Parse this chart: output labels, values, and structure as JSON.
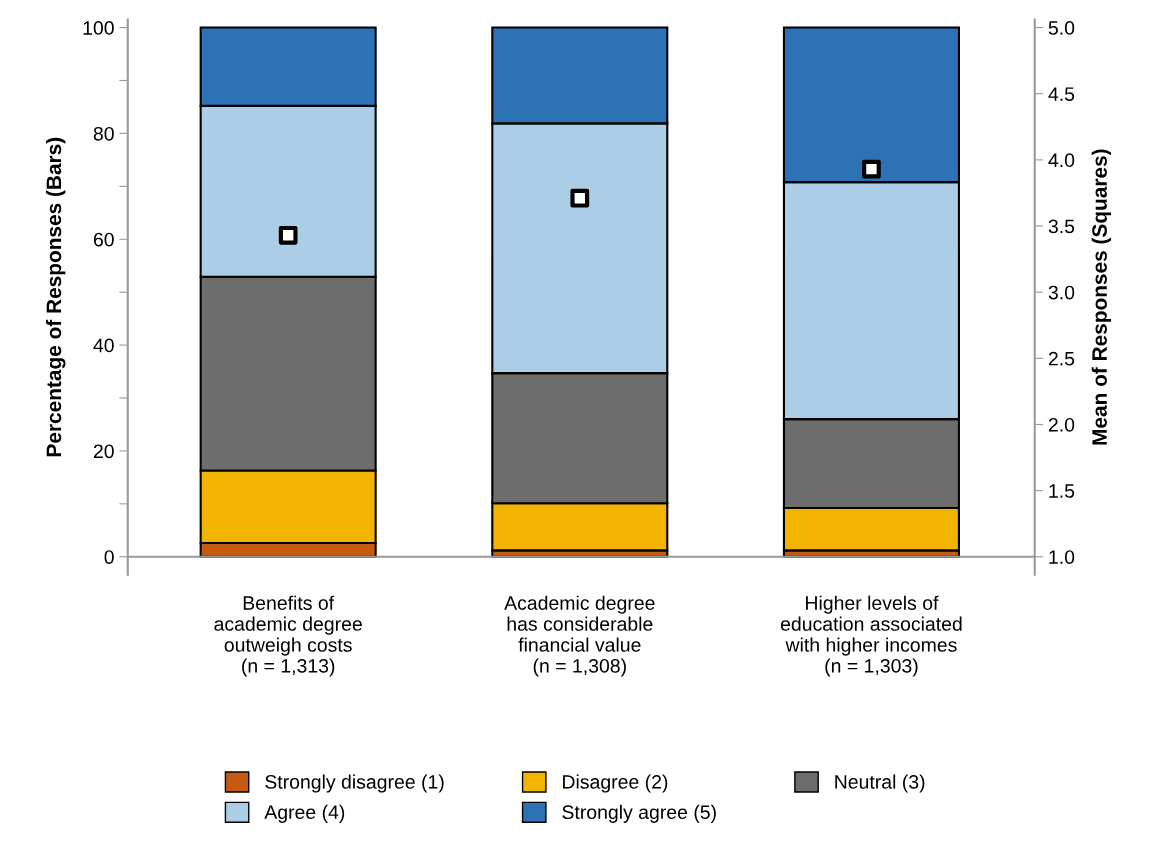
{
  "chart_data": {
    "type": "bar",
    "stacked": true,
    "categories": [
      "Benefits of\nacademic degree\noutweigh costs\n(n = 1,313)",
      "Academic degree\nhas considerable\nfinancial value\n(n = 1,308)",
      "Higher levels of\neducation associated\nwith higher incomes\n(n = 1,303)"
    ],
    "ylabel": "Percentage of Responses (Bars)",
    "y2label": "Mean of Responses (Squares)",
    "ylim": [
      -3.4,
      101.5
    ],
    "yticks": [
      0,
      {
        "value": 10,
        "label": null
      },
      20,
      {
        "value": 30,
        "label": null
      },
      40,
      {
        "value": 50,
        "label": null
      },
      60,
      {
        "value": 70,
        "label": null
      },
      80,
      {
        "value": 90,
        "label": null
      },
      100
    ],
    "y2lim": [
      0.864,
      5.06
    ],
    "y2ticks": [
      {
        "value": 1.0,
        "label": "1.0"
      },
      1.5,
      {
        "value": 2.0,
        "label": "2.0"
      },
      2.5,
      {
        "value": 3.0,
        "label": "3.0"
      },
      3.5,
      {
        "value": 4.0,
        "label": "4.0"
      },
      4.5,
      {
        "value": 5.0,
        "label": "5.0"
      }
    ],
    "series": [
      {
        "name": "Strongly disagree (1)",
        "color": "#c55a11",
        "values": [
          2.6,
          1.2,
          1.2
        ]
      },
      {
        "name": "Disagree (2)",
        "color": "#f2b400",
        "values": [
          13.7,
          8.9,
          8.0
        ]
      },
      {
        "name": "Neutral (3)",
        "color": "#6d6d6d",
        "values": [
          36.6,
          24.6,
          16.8
        ]
      },
      {
        "name": "Agree (4)",
        "color": "#abcde6",
        "values": [
          32.3,
          47.2,
          44.8
        ]
      },
      {
        "name": "Strongly agree (5)",
        "color": "#2e72b6",
        "values": [
          14.8,
          18.1,
          29.2
        ]
      },
      {
        "type": "scatter",
        "axis": "y2",
        "marker": "square",
        "color": "#ffffff",
        "values": [
          3.43,
          3.71,
          3.93
        ]
      }
    ],
    "grid": false,
    "legend": "bottom"
  }
}
